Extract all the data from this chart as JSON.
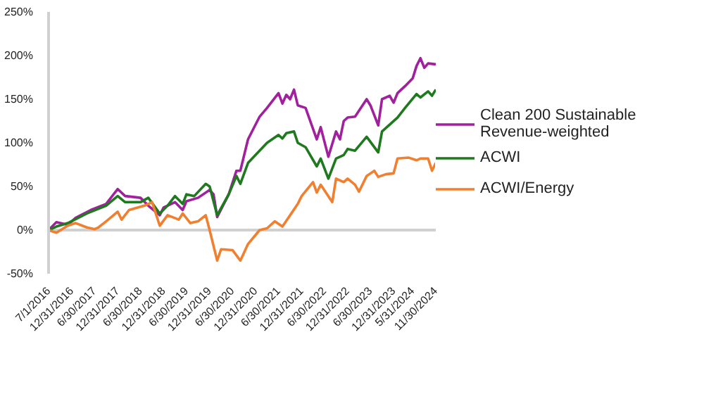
{
  "chart_data": {
    "type": "line",
    "series": [
      {
        "name": "Clean 200 Sustainable Revenue-weighted",
        "color": "#a0209e",
        "x": [
          "2016-07",
          "2016-09",
          "2016-12",
          "2017-02",
          "2017-06",
          "2017-10",
          "2018-01",
          "2018-03",
          "2018-07",
          "2018-09",
          "2018-12",
          "2019-01",
          "2019-04",
          "2019-06",
          "2019-07",
          "2019-10",
          "2020-01",
          "2020-02",
          "2020-03",
          "2020-06",
          "2020-08",
          "2020-09",
          "2020-11",
          "2021-02",
          "2021-04",
          "2021-07",
          "2021-08",
          "2021-09",
          "2021-10",
          "2021-11",
          "2021-12",
          "2022-02",
          "2022-05",
          "2022-06",
          "2022-08",
          "2022-10",
          "2022-11",
          "2022-12",
          "2023-01",
          "2023-03",
          "2023-06",
          "2023-07",
          "2023-09",
          "2023-10",
          "2023-12",
          "2024-01",
          "2024-02",
          "2024-04",
          "2024-06",
          "2024-07",
          "2024-08",
          "2024-09",
          "2024-10",
          "2024-12"
        ],
        "values": [
          0,
          9,
          6,
          14,
          23,
          30,
          47,
          39,
          37,
          28,
          17,
          26,
          32,
          23,
          33,
          37,
          46,
          41,
          15,
          41,
          68,
          68,
          104,
          130,
          140,
          157,
          145,
          155,
          150,
          161,
          143,
          140,
          104,
          118,
          84,
          113,
          104,
          125,
          129,
          130,
          150,
          143,
          120,
          150,
          154,
          146,
          157,
          165,
          174,
          188,
          197,
          186,
          191,
          190
        ]
      },
      {
        "name": "ACWI",
        "color": "#1f7a1f",
        "x": [
          "2016-07",
          "2016-09",
          "2016-12",
          "2017-05",
          "2017-10",
          "2018-01",
          "2018-03",
          "2018-07",
          "2018-09",
          "2018-12",
          "2019-02",
          "2019-04",
          "2019-06",
          "2019-07",
          "2019-09",
          "2019-12",
          "2020-01",
          "2020-03",
          "2020-06",
          "2020-08",
          "2020-09",
          "2020-11",
          "2021-04",
          "2021-07",
          "2021-08",
          "2021-09",
          "2021-11",
          "2021-12",
          "2022-02",
          "2022-05",
          "2022-06",
          "2022-08",
          "2022-10",
          "2022-12",
          "2023-01",
          "2023-03",
          "2023-06",
          "2023-09",
          "2023-10",
          "2024-02",
          "2024-04",
          "2024-07",
          "2024-08",
          "2024-10",
          "2024-11",
          "2024-12"
        ],
        "values": [
          0,
          4,
          8,
          19,
          28,
          39,
          32,
          32,
          37,
          19,
          28,
          39,
          30,
          41,
          39,
          53,
          50,
          17,
          41,
          62,
          53,
          77,
          100,
          109,
          105,
          111,
          113,
          100,
          95,
          73,
          82,
          59,
          82,
          86,
          93,
          91,
          107,
          89,
          113,
          129,
          140,
          156,
          152,
          159,
          154,
          161
        ]
      },
      {
        "name": "ACWI/Energy",
        "color": "#f0802f",
        "x": [
          "2016-07",
          "2016-09",
          "2016-12",
          "2017-02",
          "2017-05",
          "2017-07",
          "2017-08",
          "2017-10",
          "2018-01",
          "2018-02",
          "2018-04",
          "2018-08",
          "2018-10",
          "2018-12",
          "2019-02",
          "2019-05",
          "2019-06",
          "2019-08",
          "2019-10",
          "2019-12",
          "2020-01",
          "2020-03",
          "2020-04",
          "2020-07",
          "2020-09",
          "2020-11",
          "2021-02",
          "2021-04",
          "2021-06",
          "2021-08",
          "2021-10",
          "2021-12",
          "2022-01",
          "2022-04",
          "2022-05",
          "2022-06",
          "2022-09",
          "2022-10",
          "2022-12",
          "2023-01",
          "2023-03",
          "2023-04",
          "2023-06",
          "2023-08",
          "2023-09",
          "2023-11",
          "2024-01",
          "2024-02",
          "2024-05",
          "2024-07",
          "2024-08",
          "2024-10",
          "2024-11",
          "2024-12"
        ],
        "values": [
          0,
          -3,
          5,
          8,
          3,
          1,
          3,
          10,
          21,
          12,
          23,
          28,
          32,
          5,
          17,
          12,
          19,
          8,
          10,
          17,
          0,
          -35,
          -22,
          -23,
          -35,
          -16,
          0,
          2,
          10,
          4,
          17,
          30,
          39,
          55,
          43,
          52,
          32,
          59,
          55,
          59,
          52,
          44,
          62,
          68,
          61,
          64,
          65,
          82,
          83,
          80,
          82,
          82,
          68,
          77
        ]
      }
    ],
    "xlim": [
      "2016-07",
      "2024-12"
    ],
    "xticks": [
      {
        "value": "2016-07-01",
        "label": "7/1/2016"
      },
      {
        "value": "2016-12-31",
        "label": "12/31/2016"
      },
      {
        "value": "2017-06-30",
        "label": "6/30/2017"
      },
      {
        "value": "2017-12-31",
        "label": "12/31/2017"
      },
      {
        "value": "2018-06-30",
        "label": "6/30/2018"
      },
      {
        "value": "2018-12-31",
        "label": "12/31/2018"
      },
      {
        "value": "2019-06-30",
        "label": "6/30/2019"
      },
      {
        "value": "2019-12-31",
        "label": "12/31/2019"
      },
      {
        "value": "2020-06-30",
        "label": "6/30/2020"
      },
      {
        "value": "2020-12-31",
        "label": "12/31/2020"
      },
      {
        "value": "2021-06-30",
        "label": "6/30/2021"
      },
      {
        "value": "2021-12-31",
        "label": "12/31/2021"
      },
      {
        "value": "2022-06-30",
        "label": "6/30/2022"
      },
      {
        "value": "2022-12-31",
        "label": "12/31/2022"
      },
      {
        "value": "2023-06-30",
        "label": "6/30/2023"
      },
      {
        "value": "2023-12-31",
        "label": "12/31/2023"
      },
      {
        "value": "2024-05-31",
        "label": "5/31/2024"
      },
      {
        "value": "2024-11-30",
        "label": "11/30/2024"
      }
    ],
    "ylim": [
      -50,
      250
    ],
    "yticks": [
      {
        "value": -50,
        "label": "-50%"
      },
      {
        "value": 0,
        "label": "0%"
      },
      {
        "value": 50,
        "label": "50%"
      },
      {
        "value": 100,
        "label": "100%"
      },
      {
        "value": 150,
        "label": "150%"
      },
      {
        "value": 200,
        "label": "200%"
      },
      {
        "value": 250,
        "label": "250%"
      }
    ],
    "ref_lines": [
      {
        "axis": "y",
        "value": 0,
        "color": "#d0d0d0"
      }
    ],
    "legend": "right",
    "marker": "none",
    "line_style": "solid"
  }
}
